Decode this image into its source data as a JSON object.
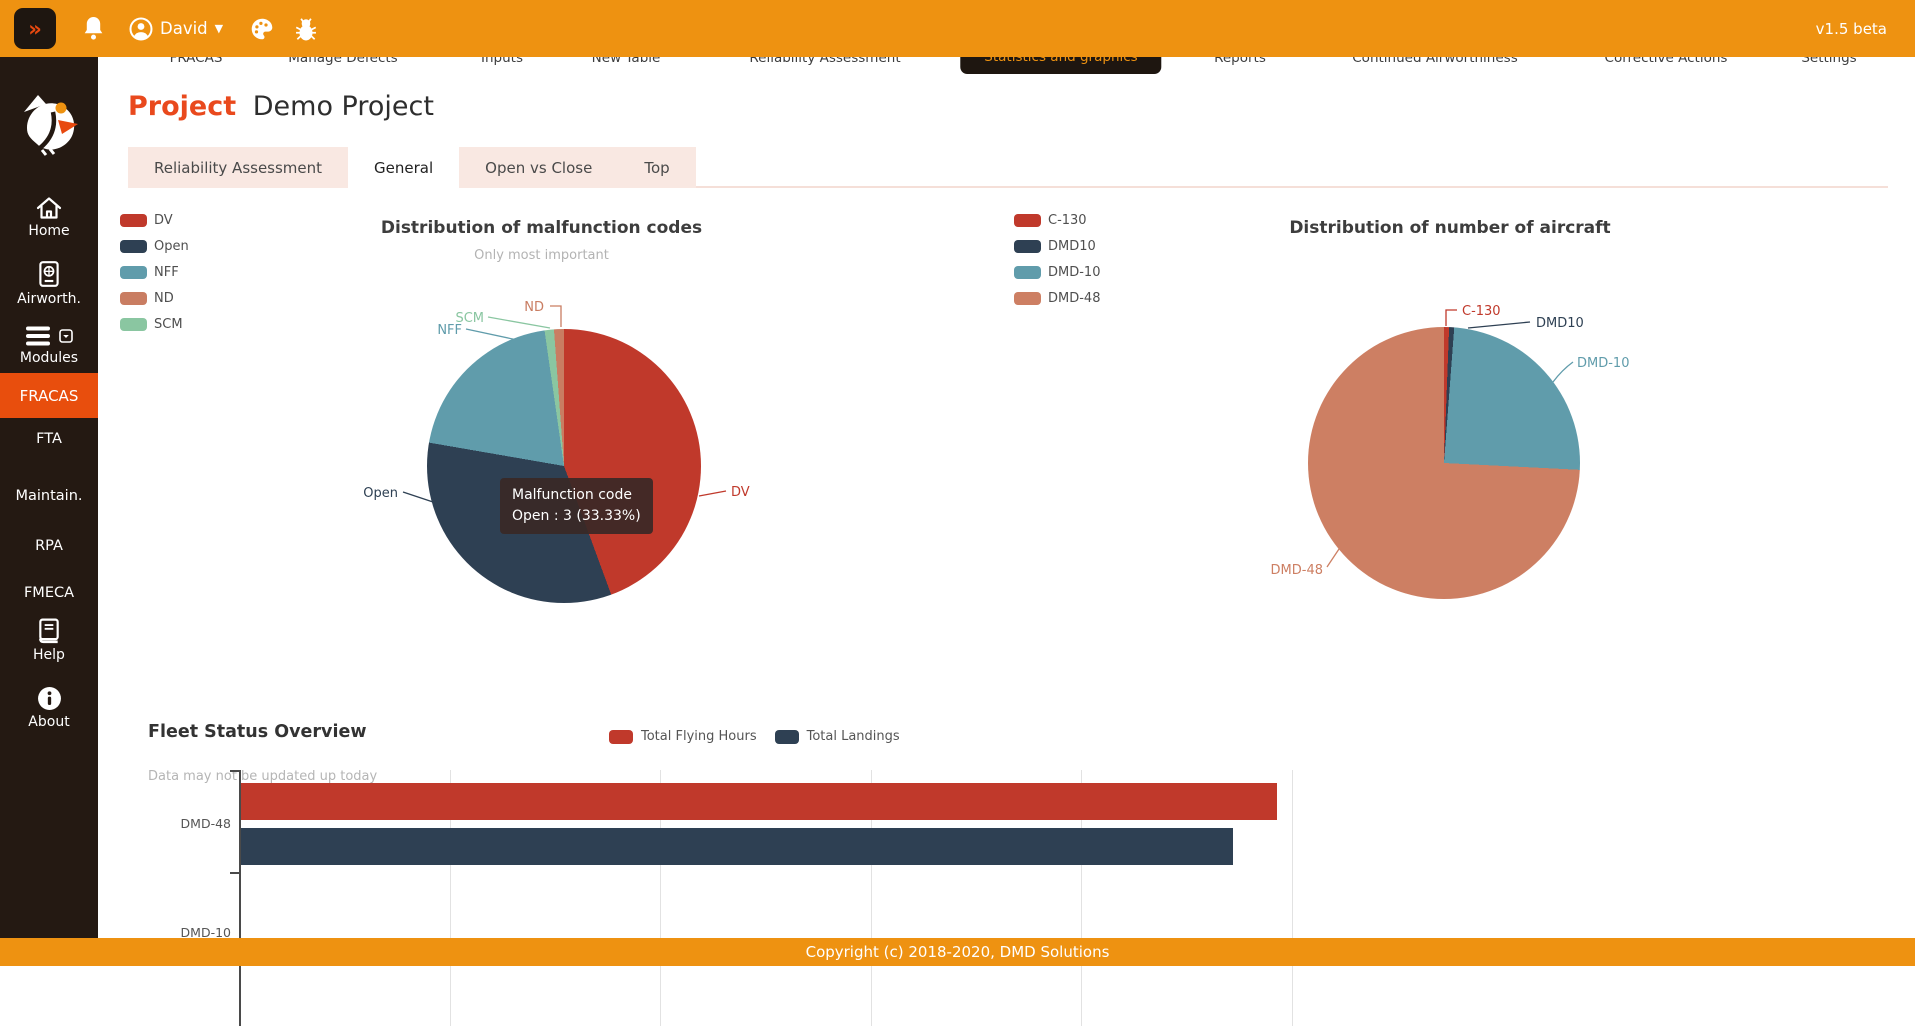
{
  "topbar": {
    "collapse_icon": "»",
    "user": "David",
    "version": "v1.5 beta"
  },
  "nav": {
    "items": [
      {
        "label": "FRACAS"
      },
      {
        "label": "Manage Defects"
      },
      {
        "label": "Inputs"
      },
      {
        "label": "New Table"
      },
      {
        "label": "Reliability Assessment"
      },
      {
        "label": "Statistics and graphics"
      },
      {
        "label": "Reports"
      },
      {
        "label": "Continued Airworthiness"
      },
      {
        "label": "Corrective Actions"
      },
      {
        "label": "Settings"
      }
    ],
    "active": "Statistics and graphics"
  },
  "sidebar": {
    "items": [
      {
        "label": "Home"
      },
      {
        "label": "Airworth."
      },
      {
        "label": "Modules"
      },
      {
        "label": "FRACAS"
      },
      {
        "label": "FTA"
      },
      {
        "label": "Maintain."
      },
      {
        "label": "RPA"
      },
      {
        "label": "FMECA"
      },
      {
        "label": "Help"
      },
      {
        "label": "About"
      }
    ],
    "active": "FRACAS"
  },
  "page": {
    "title_label": "Project",
    "title_name": "Demo Project",
    "tabs": [
      {
        "label": "Reliability Assessment"
      },
      {
        "label": "General"
      },
      {
        "label": "Open vs Close"
      },
      {
        "label": "Top"
      }
    ],
    "active_tab": "General"
  },
  "footer": {
    "copyright": "Copyright (c) 2018-2020, DMD Solutions"
  },
  "colors": {
    "topbar_orange": "#EE9211",
    "sidebar_dark": "#241912",
    "accent_red_orange": "#E84E0D",
    "title_red": "#E9491D"
  },
  "chart_data": [
    {
      "type": "pie",
      "title": "Distribution of malfunction codes",
      "subtitle": "Only most important",
      "slices": [
        {
          "label": "DV",
          "color": "#C0392B",
          "pct": 44.4
        },
        {
          "label": "Open",
          "color": "#2E4053",
          "pct": 33.33,
          "value": 3
        },
        {
          "label": "NFF",
          "color": "#609CAB",
          "pct": 20.0
        },
        {
          "label": "SCM",
          "color": "#8AC6A1",
          "pct": 1.1
        },
        {
          "label": "ND",
          "color": "#C97D62",
          "pct": 1.17
        }
      ],
      "tooltip": {
        "title": "Malfunction code",
        "line": "Open : 3 (33.33%)"
      },
      "legend_position": "left"
    },
    {
      "type": "pie",
      "title": "Distribution of number of aircraft",
      "slices": [
        {
          "label": "C-130",
          "color": "#C0392B",
          "pct": 0.6
        },
        {
          "label": "DMD10",
          "color": "#2E4053",
          "pct": 0.6
        },
        {
          "label": "DMD-10",
          "color": "#609CAB",
          "pct": 24.6
        },
        {
          "label": "DMD-48",
          "color": "#CD7F63",
          "pct": 74.2
        }
      ],
      "legend_position": "left"
    },
    {
      "type": "bar",
      "orientation": "horizontal",
      "title": "Fleet Status Overview",
      "subtitle": "Data may not be updated up today",
      "categories": [
        "DMD-48",
        "DMD-10"
      ],
      "series": [
        {
          "name": "Total Flying Hours",
          "color": "#C0392B",
          "values": [
            4.92,
            null
          ]
        },
        {
          "name": "Total Landings",
          "color": "#2E4053",
          "values": [
            4.71,
            null
          ]
        }
      ],
      "xlim": [
        0,
        5.02
      ],
      "grid": true,
      "note": "x axis unlabeled; values estimated in gridline units; DMD-10 row clipped by viewport"
    }
  ]
}
